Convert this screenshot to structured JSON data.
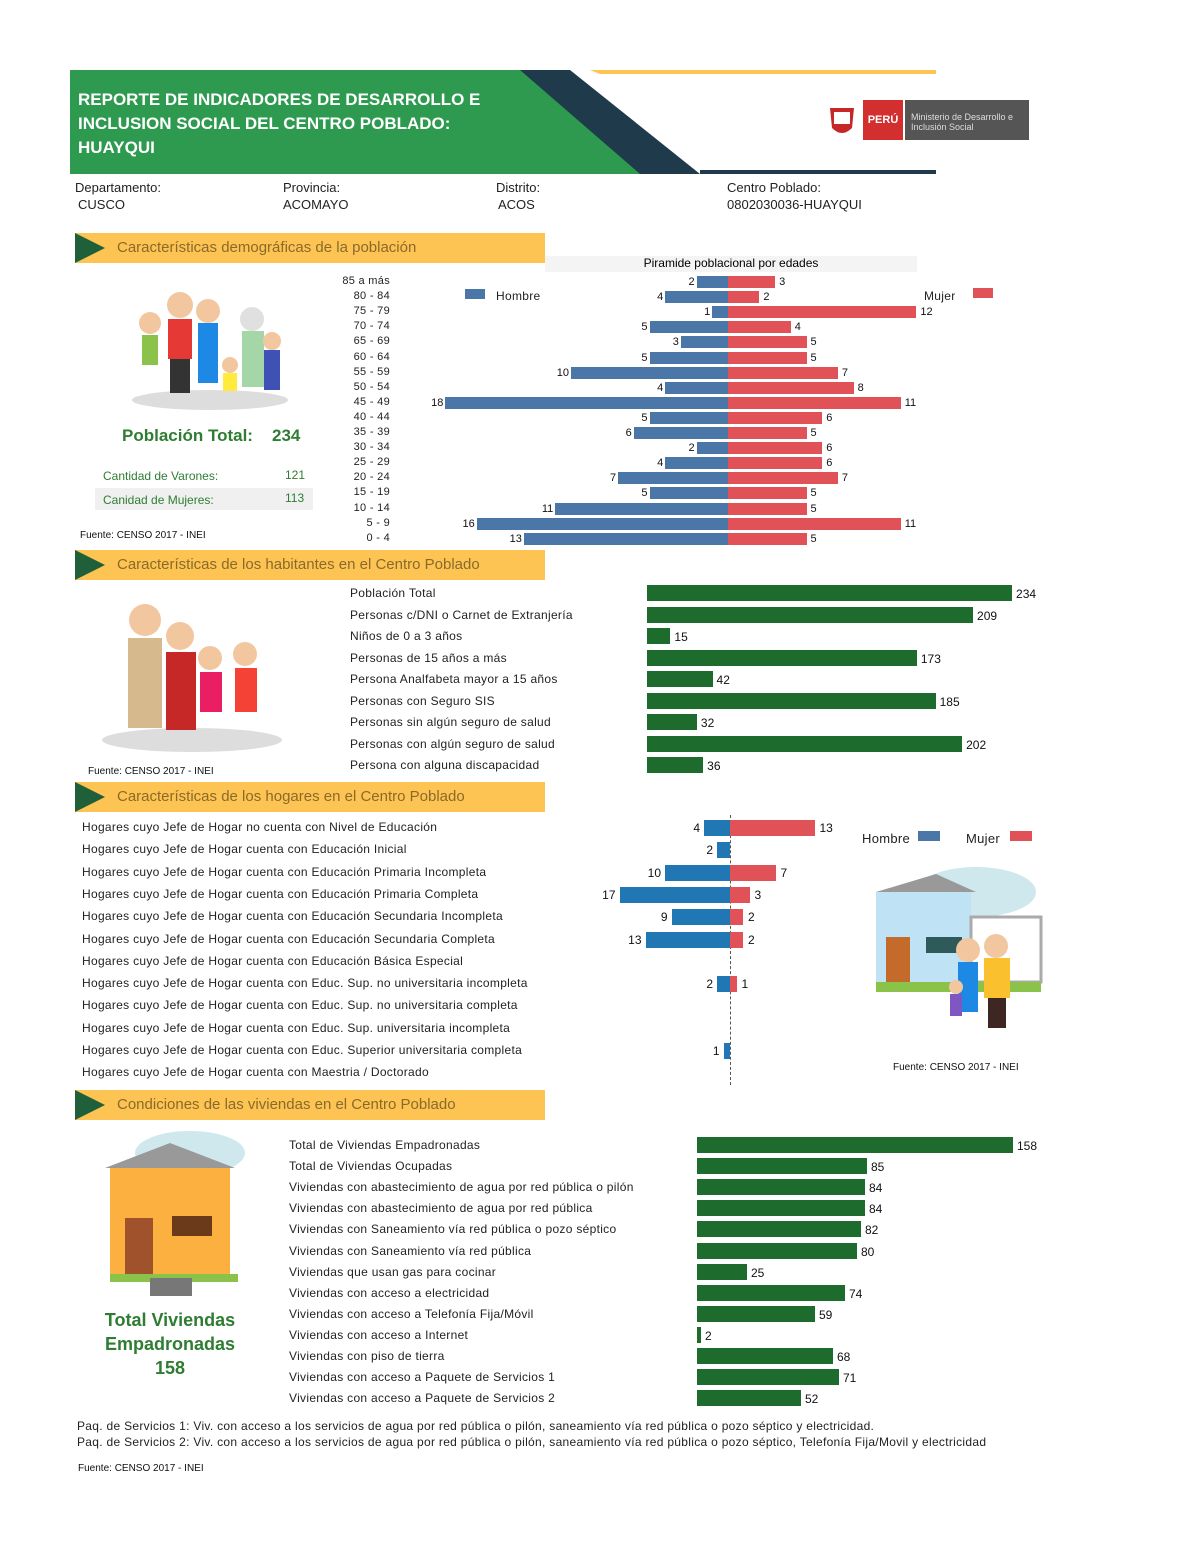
{
  "header": {
    "title": "REPORTE DE INDICADORES DE DESARROLLO E INCLUSION SOCIAL DEL CENTRO POBLADO: HUAYQUI",
    "logo_text": "PERÚ",
    "ministry": "Ministerio de Desarrollo e Inclusión Social"
  },
  "location": {
    "departamento_label": "Departamento:",
    "departamento": "CUSCO",
    "provincia_label": "Provincia:",
    "provincia": "ACOMAYO",
    "distrito_label": "Distrito:",
    "distrito": "ACOS",
    "centro_label": "Centro Poblado:",
    "centro": "0802030036-HUAYQUI"
  },
  "colors": {
    "green": "#2e9a4f",
    "bar_green": "#1e6b2e",
    "hombre": "#4a76a8",
    "mujer": "#e05257",
    "hogar_hombre": "#2077b4",
    "section": "#fdc453"
  },
  "sections": {
    "demo": "Características demográficas de la población",
    "habitantes": "Características de los habitantes en el Centro Poblado",
    "hogares": "Características de los hogares en el Centro Poblado",
    "viviendas": "Condiciones de las viviendas en el Centro Poblado"
  },
  "demo": {
    "total_label": "Población Total:",
    "total": "234",
    "varones_label": "Cantidad de Varones:",
    "varones": "121",
    "mujeres_label": "Canidad de Mujeres:",
    "mujeres": "113",
    "source": "Fuente: CENSO 2017 - INEI"
  },
  "chart_data": [
    {
      "type": "bar",
      "title": "Piramide poblacional por edades",
      "legend": [
        "Hombre",
        "Mujer"
      ],
      "categories": [
        "85 a más",
        "80 - 84",
        "75 - 79",
        "70 - 74",
        "65 - 69",
        "60 - 64",
        "55 - 59",
        "50 - 54",
        "45 - 49",
        "40 - 44",
        "35 - 39",
        "30 - 34",
        "25 - 29",
        "20 - 24",
        "15 - 19",
        "10 - 14",
        "5 - 9",
        "0 - 4"
      ],
      "series": [
        {
          "name": "Hombre",
          "values": [
            2,
            4,
            1,
            5,
            3,
            5,
            10,
            4,
            18,
            5,
            6,
            2,
            4,
            7,
            5,
            11,
            16,
            13
          ]
        },
        {
          "name": "Mujer",
          "values": [
            3,
            2,
            12,
            4,
            5,
            5,
            7,
            8,
            11,
            6,
            5,
            6,
            6,
            7,
            5,
            5,
            11,
            5
          ]
        }
      ]
    },
    {
      "type": "bar",
      "categories": [
        "Población Total",
        "Personas c/DNI o Carnet de Extranjería",
        "Niños de 0 a 3 años",
        "Personas de 15 años a más",
        "Persona Analfabeta mayor a 15 años",
        "Personas con Seguro SIS",
        "Personas sin algún seguro de salud",
        "Personas con algún seguro de salud",
        "Persona con alguna discapacidad"
      ],
      "values": [
        234,
        209,
        15,
        173,
        42,
        185,
        32,
        202,
        36
      ]
    },
    {
      "type": "bar",
      "legend": [
        "Hombre",
        "Mujer"
      ],
      "categories": [
        "Hogares cuyo Jefe de Hogar no cuenta con Nivel de Educación",
        "Hogares cuyo Jefe de Hogar cuenta con Educación Inicial",
        "Hogares cuyo Jefe de Hogar cuenta con Educación Primaria Incompleta",
        "Hogares cuyo Jefe de Hogar cuenta con Educación Primaria Completa",
        "Hogares cuyo Jefe de Hogar cuenta con Educación Secundaria Incompleta",
        "Hogares cuyo Jefe de Hogar cuenta con Educación Secundaria Completa",
        "Hogares cuyo Jefe de Hogar cuenta con Educación Básica Especial",
        "Hogares cuyo Jefe de Hogar cuenta con Educ. Sup. no universitaria incompleta",
        "Hogares cuyo Jefe de Hogar cuenta con Educ. Sup. no universitaria completa",
        "Hogares cuyo Jefe de Hogar cuenta con Educ. Sup. universitaria incompleta",
        "Hogares cuyo Jefe de Hogar cuenta con Educ. Superior universitaria completa",
        "Hogares cuyo Jefe de Hogar cuenta con Maestria / Doctorado"
      ],
      "series": [
        {
          "name": "Hombre",
          "values": [
            4,
            2,
            10,
            17,
            9,
            13,
            null,
            2,
            null,
            null,
            1,
            null
          ]
        },
        {
          "name": "Mujer",
          "values": [
            13,
            null,
            7,
            3,
            2,
            2,
            null,
            1,
            null,
            null,
            null,
            null
          ]
        }
      ]
    },
    {
      "type": "bar",
      "categories": [
        "Total de Viviendas Empadronadas",
        "Total de Viviendas Ocupadas",
        "Viviendas con abastecimiento de agua por red pública o pilón",
        "Viviendas con abastecimiento de agua por red pública",
        "Viviendas con Saneamiento vía red pública o pozo séptico",
        "Viviendas con Saneamiento vía red pública",
        "Viviendas que usan gas para cocinar",
        "Viviendas con acceso a electricidad",
        "Viviendas con acceso a Telefonía Fija/Móvil",
        "Viviendas con acceso a Internet",
        "Viviendas con piso de tierra",
        "Viviendas con acceso a Paquete de Servicios 1",
        "Viviendas con acceso a Paquete de Servicios 2"
      ],
      "values": [
        158,
        85,
        84,
        84,
        82,
        80,
        25,
        74,
        59,
        2,
        68,
        71,
        52
      ]
    }
  ],
  "habitantes": {
    "source": "Fuente: CENSO 2017 - INEI"
  },
  "hogares": {
    "source": "Fuente: CENSO 2017 - INEI"
  },
  "viviendas": {
    "total_line1": "Total Viviendas",
    "total_line2": "Empadronadas",
    "total": "158",
    "note1": "Paq. de Servicios 1: Viv. con acceso a los servicios de agua por red pública o pilón, saneamiento vía red pública o pozo séptico y electricidad.",
    "note2": "Paq. de Servicios 2: Viv. con acceso a los servicios de agua por red pública o pilón, saneamiento vía red pública o pozo séptico, Telefonía Fija/Movil y electricidad",
    "source": "Fuente: CENSO 2017 - INEI"
  }
}
